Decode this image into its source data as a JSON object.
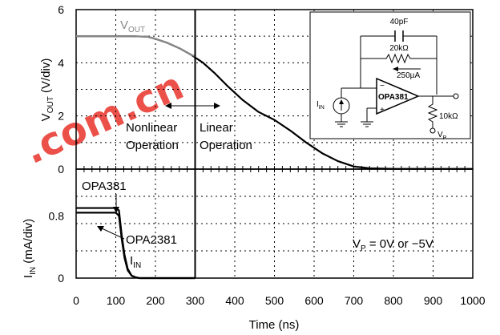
{
  "chart_data": [
    {
      "type": "line",
      "panel": "top",
      "ylabel_parts": [
        "V",
        "OUT",
        " (V/div)"
      ],
      "ylim": [
        0,
        6
      ],
      "yticks": [
        "0",
        "2",
        "4",
        "6"
      ],
      "xlim": [
        0,
        1000
      ],
      "series": [
        {
          "name_parts": [
            "V",
            "OUT"
          ],
          "color": "#888888",
          "points": [
            [
              0,
              5
            ],
            [
              140,
              5
            ],
            [
              180,
              4.98
            ],
            [
              200,
              4.9
            ],
            [
              230,
              4.75
            ],
            [
              260,
              4.55
            ],
            [
              290,
              4.3
            ],
            [
              300,
              4.25
            ]
          ]
        },
        {
          "color": "#000000",
          "points": [
            [
              0,
              5
            ],
            [
              140,
              5
            ],
            [
              180,
              4.98
            ],
            [
              200,
              4.9
            ],
            [
              230,
              4.75
            ],
            [
              260,
              4.55
            ],
            [
              290,
              4.3
            ],
            [
              320,
              4.0
            ],
            [
              350,
              3.6
            ],
            [
              380,
              3.15
            ],
            [
              420,
              2.6
            ],
            [
              460,
              2.15
            ],
            [
              500,
              1.85
            ],
            [
              540,
              1.45
            ],
            [
              580,
              1.0
            ],
            [
              620,
              0.6
            ],
            [
              660,
              0.3
            ],
            [
              700,
              0.1
            ],
            [
              740,
              0.03
            ],
            [
              800,
              0.01
            ],
            [
              1000,
              0.01
            ]
          ]
        }
      ],
      "annotations": {
        "nonlinear": [
          "Nonlinear",
          "Operation"
        ],
        "linear": [
          "Linear",
          "Operation"
        ],
        "divider_x": 300
      }
    },
    {
      "type": "line",
      "panel": "bottom",
      "xlabel": "Time (ns)",
      "ylabel_parts": [
        "I",
        "IN",
        " (mA/div)"
      ],
      "ylim": [
        0,
        1.4
      ],
      "yticks": [
        "0",
        "0.8"
      ],
      "xticks": [
        "0",
        "100",
        "200",
        "300",
        "400",
        "500",
        "600",
        "700",
        "800",
        "900",
        "1000"
      ],
      "series": [
        {
          "name": "OPA381",
          "points": [
            [
              0,
              0.9
            ],
            [
              100,
              0.9
            ],
            [
              108,
              0.87
            ],
            [
              115,
              0.55
            ],
            [
              122,
              0.3
            ],
            [
              130,
              0.12
            ],
            [
              140,
              0.03
            ],
            [
              150,
              0.01
            ],
            [
              160,
              0
            ],
            [
              300,
              0
            ]
          ]
        },
        {
          "name": "OPA2381",
          "points": [
            [
              0,
              0.84
            ],
            [
              100,
              0.84
            ],
            [
              108,
              0.8
            ],
            [
              115,
              0.5
            ],
            [
              122,
              0.26
            ],
            [
              130,
              0.1
            ],
            [
              140,
              0.03
            ],
            [
              150,
              0.01
            ],
            [
              160,
              0
            ],
            [
              300,
              0
            ]
          ]
        }
      ],
      "labels": {
        "iin_parts": [
          "I",
          "IN"
        ],
        "condition_parts": [
          "V",
          "P",
          " = 0V or −5V"
        ]
      }
    }
  ],
  "inset": {
    "cap_label": "40pF",
    "res_label": "20kΩ",
    "bias_label": "250µA",
    "opamp_label": "OPA381",
    "load_label": "10kΩ",
    "iin_parts": [
      "I",
      "IN"
    ],
    "vp_parts": [
      "V",
      "P"
    ],
    "minus": "−",
    "plus": "+"
  },
  "watermark": {
    "text": ".com.cn",
    "color": "#e8332a"
  }
}
